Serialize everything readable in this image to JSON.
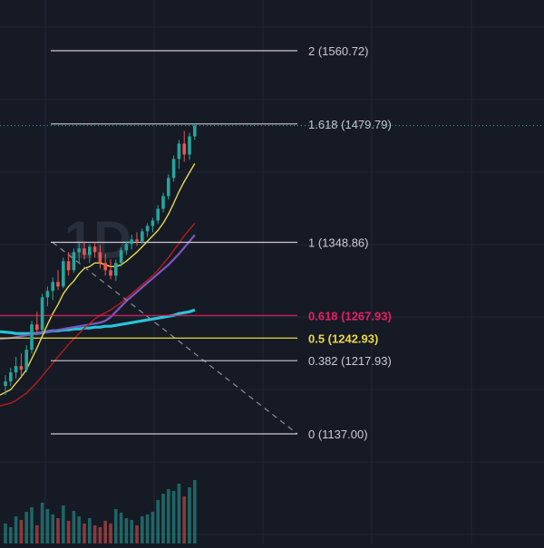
{
  "watermark": {
    "text": "1D"
  },
  "colors": {
    "background": "#161a25",
    "grid": "#232735",
    "fib_level_default": "#c9cbd1",
    "fib_level_0618": "#e91e63",
    "fib_level_05": "#e8d84a",
    "up_candle": "#26a69a",
    "down_candle": "#ef5350",
    "ma_fast": "#e8d84a",
    "ma_mid": "#b71c1c",
    "ma_slow": "#7e57c2",
    "ma_long": "#26c6da",
    "last_price_line": "#26a69a",
    "trend_dashed": "#8a8f9c"
  },
  "fib_levels": [
    {
      "ratio": 2,
      "price": 1560.72,
      "label": "2 (1560.72)",
      "color": "#c9cbd1",
      "bold": false
    },
    {
      "ratio": 1.618,
      "price": 1479.79,
      "label": "1.618 (1479.79)",
      "color": "#c9cbd1",
      "bold": false
    },
    {
      "ratio": 1,
      "price": 1348.86,
      "label": "1 (1348.86)",
      "color": "#c9cbd1",
      "bold": false
    },
    {
      "ratio": 0.618,
      "price": 1267.93,
      "label": "0.618 (1267.93)",
      "color": "#e91e63",
      "bold": true
    },
    {
      "ratio": 0.5,
      "price": 1242.93,
      "label": "0.5 (1242.93)",
      "color": "#e8d84a",
      "bold": true
    },
    {
      "ratio": 0.382,
      "price": 1217.93,
      "label": "0.382 (1217.93)",
      "color": "#c9cbd1",
      "bold": false
    },
    {
      "ratio": 0,
      "price": 1137.0,
      "label": "0 (1137.00)",
      "color": "#c9cbd1",
      "bold": false
    }
  ],
  "chart_data": {
    "type": "candlestick",
    "timeframe": "1D",
    "candles": [
      {
        "o": 1190,
        "h": 1202,
        "l": 1180,
        "c": 1195
      },
      {
        "o": 1195,
        "h": 1210,
        "l": 1190,
        "c": 1205
      },
      {
        "o": 1205,
        "h": 1222,
        "l": 1198,
        "c": 1212
      },
      {
        "o": 1212,
        "h": 1226,
        "l": 1200,
        "c": 1208
      },
      {
        "o": 1208,
        "h": 1235,
        "l": 1205,
        "c": 1230
      },
      {
        "o": 1230,
        "h": 1262,
        "l": 1226,
        "c": 1258
      },
      {
        "o": 1258,
        "h": 1272,
        "l": 1248,
        "c": 1252
      },
      {
        "o": 1252,
        "h": 1292,
        "l": 1250,
        "c": 1288
      },
      {
        "o": 1288,
        "h": 1300,
        "l": 1278,
        "c": 1295
      },
      {
        "o": 1295,
        "h": 1310,
        "l": 1285,
        "c": 1305
      },
      {
        "o": 1305,
        "h": 1318,
        "l": 1296,
        "c": 1300
      },
      {
        "o": 1300,
        "h": 1332,
        "l": 1298,
        "c": 1328
      },
      {
        "o": 1328,
        "h": 1338,
        "l": 1312,
        "c": 1318
      },
      {
        "o": 1318,
        "h": 1342,
        "l": 1315,
        "c": 1338
      },
      {
        "o": 1338,
        "h": 1348,
        "l": 1325,
        "c": 1342
      },
      {
        "o": 1342,
        "h": 1350,
        "l": 1330,
        "c": 1335
      },
      {
        "o": 1335,
        "h": 1347,
        "l": 1326,
        "c": 1344
      },
      {
        "o": 1344,
        "h": 1349,
        "l": 1332,
        "c": 1338
      },
      {
        "o": 1338,
        "h": 1346,
        "l": 1320,
        "c": 1326
      },
      {
        "o": 1326,
        "h": 1336,
        "l": 1312,
        "c": 1318
      },
      {
        "o": 1318,
        "h": 1330,
        "l": 1308,
        "c": 1312
      },
      {
        "o": 1312,
        "h": 1330,
        "l": 1306,
        "c": 1326
      },
      {
        "o": 1326,
        "h": 1343,
        "l": 1322,
        "c": 1340
      },
      {
        "o": 1340,
        "h": 1350,
        "l": 1335,
        "c": 1347
      },
      {
        "o": 1347,
        "h": 1357,
        "l": 1341,
        "c": 1352
      },
      {
        "o": 1352,
        "h": 1360,
        "l": 1345,
        "c": 1350
      },
      {
        "o": 1350,
        "h": 1364,
        "l": 1347,
        "c": 1361
      },
      {
        "o": 1361,
        "h": 1370,
        "l": 1355,
        "c": 1367
      },
      {
        "o": 1367,
        "h": 1376,
        "l": 1360,
        "c": 1373
      },
      {
        "o": 1373,
        "h": 1390,
        "l": 1369,
        "c": 1386
      },
      {
        "o": 1386,
        "h": 1404,
        "l": 1382,
        "c": 1400
      },
      {
        "o": 1400,
        "h": 1424,
        "l": 1396,
        "c": 1420
      },
      {
        "o": 1420,
        "h": 1445,
        "l": 1416,
        "c": 1441
      },
      {
        "o": 1441,
        "h": 1462,
        "l": 1430,
        "c": 1458
      },
      {
        "o": 1458,
        "h": 1472,
        "l": 1438,
        "c": 1446
      },
      {
        "o": 1446,
        "h": 1470,
        "l": 1440,
        "c": 1466
      },
      {
        "o": 1466,
        "h": 1480,
        "l": 1462,
        "c": 1478
      }
    ],
    "volume": [
      22,
      18,
      30,
      26,
      35,
      40,
      20,
      45,
      38,
      32,
      28,
      42,
      25,
      36,
      30,
      22,
      28,
      20,
      18,
      25,
      22,
      38,
      34,
      28,
      26,
      20,
      30,
      32,
      35,
      48,
      55,
      60,
      58,
      66,
      52,
      62,
      70
    ],
    "moving_averages": {
      "fast": [
        1180,
        1186,
        1193,
        1200,
        1208,
        1220,
        1232,
        1245,
        1258,
        1270,
        1280,
        1292,
        1300,
        1306,
        1314,
        1320,
        1322,
        1326,
        1326,
        1324,
        1322,
        1322,
        1324,
        1328,
        1333,
        1338,
        1344,
        1350,
        1356,
        1362,
        1370,
        1380,
        1392,
        1405,
        1416,
        1426,
        1436
      ],
      "mid": [
        1168,
        1171,
        1174,
        1178,
        1182,
        1188,
        1194,
        1201,
        1208,
        1215,
        1222,
        1229,
        1236,
        1242,
        1248,
        1254,
        1259,
        1264,
        1268,
        1271,
        1274,
        1278,
        1282,
        1287,
        1292,
        1297,
        1302,
        1307,
        1312,
        1318,
        1325,
        1332,
        1340,
        1348,
        1356,
        1363,
        1370
      ],
      "slow": [
        1242,
        1243,
        1244,
        1245,
        1246,
        1247,
        1248,
        1249,
        1250,
        1251,
        1252,
        1253,
        1254,
        1255,
        1256,
        1257,
        1258,
        1259,
        1260,
        1262,
        1266,
        1272,
        1278,
        1284,
        1289,
        1294,
        1299,
        1304,
        1309,
        1314,
        1319,
        1324,
        1330,
        1336,
        1343,
        1350,
        1357
      ],
      "long": [
        1250,
        1249,
        1248,
        1248,
        1248,
        1248,
        1248,
        1249,
        1250,
        1251,
        1251,
        1252,
        1252,
        1253,
        1253,
        1254,
        1254,
        1255,
        1255,
        1256,
        1256,
        1257,
        1258,
        1259,
        1260,
        1261,
        1262,
        1263,
        1264,
        1265,
        1266,
        1267,
        1268,
        1270,
        1271,
        1272,
        1274
      ]
    },
    "last_price": 1478,
    "trend_line": {
      "from_price": 1348.86,
      "to_price": 1137.0
    }
  }
}
